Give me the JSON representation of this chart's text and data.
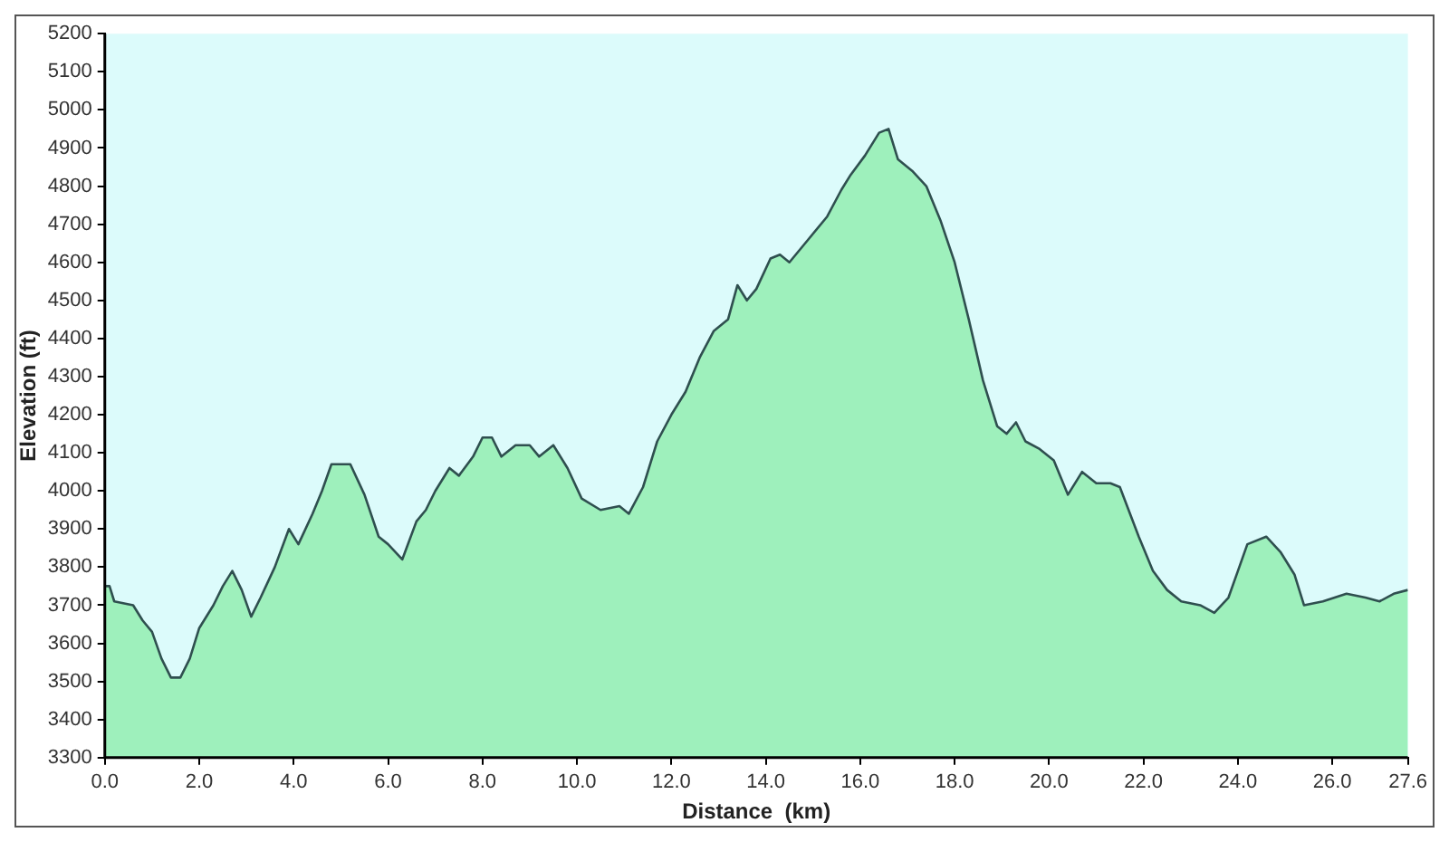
{
  "chart_data": {
    "type": "area",
    "xlabel": "Distance  (km)",
    "ylabel": "Elevation (ft)",
    "xlim": [
      0,
      27.6
    ],
    "ylim": [
      3300,
      5200
    ],
    "xticks": [
      {
        "value": 0,
        "label": "0.0"
      },
      {
        "value": 2,
        "label": "2.0"
      },
      {
        "value": 4,
        "label": "4.0"
      },
      {
        "value": 6,
        "label": "6.0"
      },
      {
        "value": 8,
        "label": "8.0"
      },
      {
        "value": 10,
        "label": "10.0"
      },
      {
        "value": 12,
        "label": "12.0"
      },
      {
        "value": 14,
        "label": "14.0"
      },
      {
        "value": 16,
        "label": "16.0"
      },
      {
        "value": 18,
        "label": "18.0"
      },
      {
        "value": 20,
        "label": "20.0"
      },
      {
        "value": 22,
        "label": "22.0"
      },
      {
        "value": 24,
        "label": "24.0"
      },
      {
        "value": 26,
        "label": "26.0"
      },
      27.6
    ],
    "yticks": [
      3300,
      3400,
      3500,
      3600,
      3700,
      3800,
      3900,
      4000,
      4100,
      4200,
      4300,
      4400,
      4500,
      4600,
      4700,
      4800,
      4900,
      5000,
      5100,
      5200
    ],
    "grid": false,
    "legend": false,
    "marker": "none",
    "line_style": "solid",
    "series": [
      {
        "color": "#9ef0bc",
        "x": [
          0,
          0.1,
          0.2,
          0.6,
          0.8,
          1.0,
          1.2,
          1.4,
          1.6,
          1.8,
          2.0,
          2.3,
          2.5,
          2.7,
          2.9,
          3.1,
          3.3,
          3.6,
          3.9,
          4.1,
          4.4,
          4.6,
          4.8,
          5.2,
          5.5,
          5.8,
          6.0,
          6.3,
          6.6,
          6.8,
          7.0,
          7.3,
          7.5,
          7.8,
          8.0,
          8.2,
          8.4,
          8.7,
          9.0,
          9.2,
          9.5,
          9.8,
          10.1,
          10.5,
          10.9,
          11.1,
          11.4,
          11.7,
          12.0,
          12.3,
          12.6,
          12.9,
          13.2,
          13.4,
          13.6,
          13.8,
          14.1,
          14.3,
          14.5,
          14.9,
          15.3,
          15.6,
          15.8,
          16.1,
          16.4,
          16.6,
          16.8,
          17.1,
          17.4,
          17.7,
          18.0,
          18.3,
          18.6,
          18.9,
          19.1,
          19.3,
          19.5,
          19.8,
          20.1,
          20.4,
          20.7,
          21.0,
          21.3,
          21.5,
          21.9,
          22.2,
          22.5,
          22.8,
          23.2,
          23.5,
          23.8,
          24.0,
          24.2,
          24.6,
          24.9,
          25.2,
          25.4,
          25.8,
          26.3,
          26.7,
          27.0,
          27.3,
          27.6
        ],
        "values": [
          3750,
          3750,
          3710,
          3700,
          3660,
          3630,
          3560,
          3510,
          3510,
          3560,
          3640,
          3700,
          3750,
          3790,
          3740,
          3670,
          3720,
          3800,
          3900,
          3860,
          3940,
          4000,
          4070,
          4070,
          3990,
          3880,
          3860,
          3820,
          3920,
          3950,
          4000,
          4060,
          4040,
          4090,
          4140,
          4140,
          4090,
          4120,
          4120,
          4090,
          4120,
          4060,
          3980,
          3950,
          3960,
          3940,
          4010,
          4130,
          4200,
          4260,
          4350,
          4420,
          4450,
          4540,
          4500,
          4530,
          4610,
          4620,
          4600,
          4660,
          4720,
          4790,
          4830,
          4880,
          4940,
          4950,
          4870,
          4840,
          4800,
          4710,
          4600,
          4450,
          4290,
          4170,
          4150,
          4180,
          4130,
          4110,
          4080,
          3990,
          4050,
          4020,
          4020,
          4010,
          3880,
          3790,
          3740,
          3710,
          3700,
          3680,
          3720,
          3790,
          3860,
          3880,
          3840,
          3780,
          3700,
          3710,
          3730,
          3720,
          3710,
          3730,
          3740
        ]
      }
    ]
  }
}
